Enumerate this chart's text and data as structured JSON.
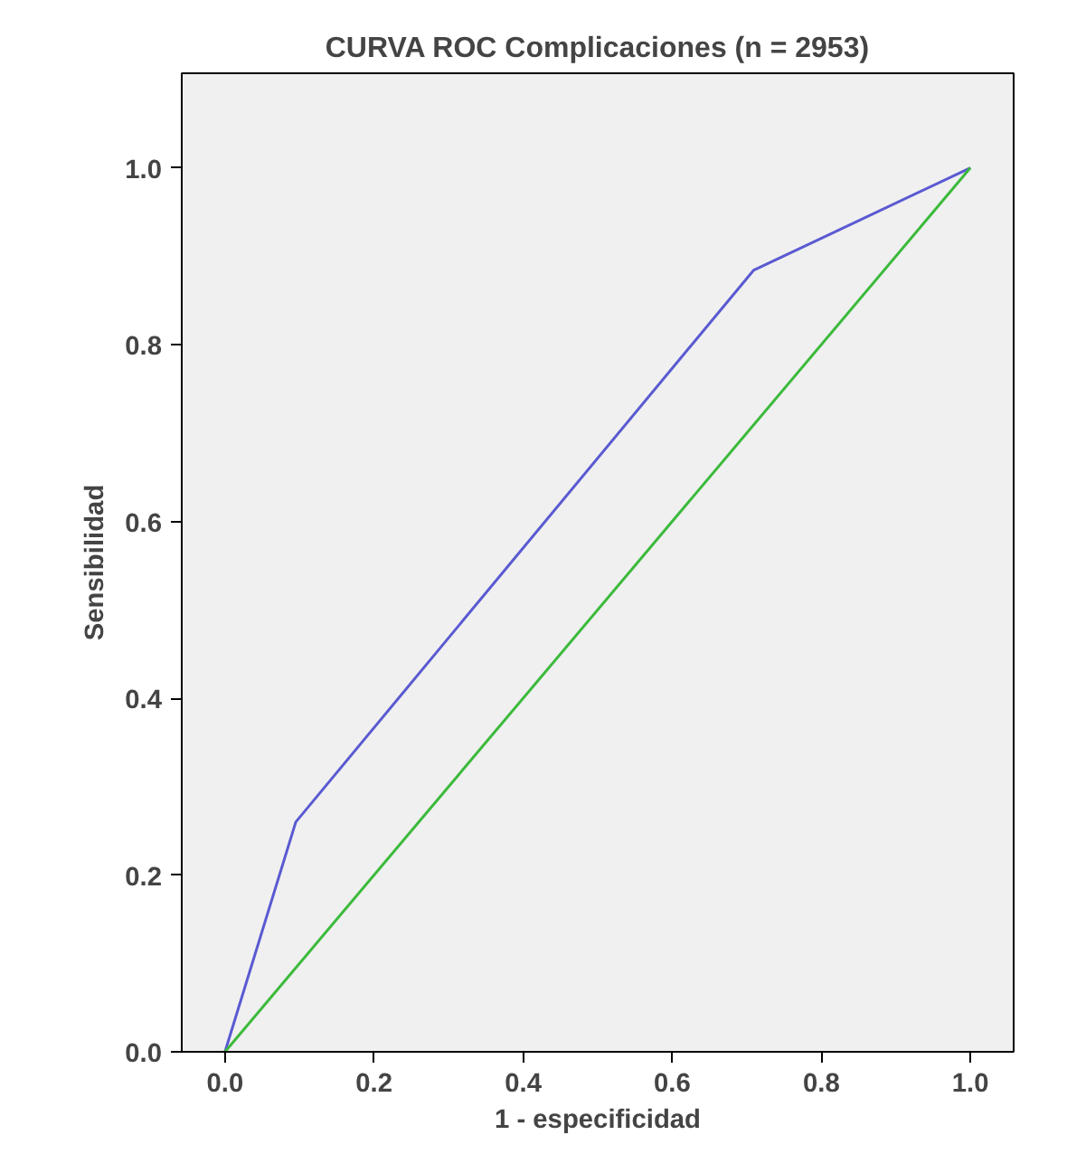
{
  "chart_data": {
    "type": "line",
    "title": "CURVA ROC Complicaciones (n = 2953)",
    "xlabel": "1 - especificidad",
    "ylabel": "Sensibilidad",
    "series": [
      {
        "color": "#5a5ad2",
        "x": [
          0.0,
          0.095,
          0.709,
          1.0
        ],
        "values": [
          0.0,
          0.26,
          0.884,
          1.0
        ]
      },
      {
        "color": "#3cba3c",
        "x": [
          0.0,
          1.0
        ],
        "values": [
          0.0,
          1.0
        ]
      }
    ],
    "xlim": [
      -0.058,
      1.058
    ],
    "ylim": [
      0.0,
      1.107
    ],
    "xticks": [
      {
        "value": 0.0,
        "label": "0.0"
      },
      {
        "value": 0.2,
        "label": "0.2"
      },
      {
        "value": 0.4,
        "label": "0.4"
      },
      {
        "value": 0.6,
        "label": "0.6"
      },
      {
        "value": 0.8,
        "label": "0.8"
      },
      {
        "value": 1.0,
        "label": "1.0"
      }
    ],
    "yticks": [
      {
        "value": 0.0,
        "label": "0.0"
      },
      {
        "value": 0.2,
        "label": "0.2"
      },
      {
        "value": 0.4,
        "label": "0.4"
      },
      {
        "value": 0.6,
        "label": "0.6"
      },
      {
        "value": 0.8,
        "label": "0.8"
      },
      {
        "value": 1.0,
        "label": "1.0"
      }
    ],
    "grid": false
  }
}
